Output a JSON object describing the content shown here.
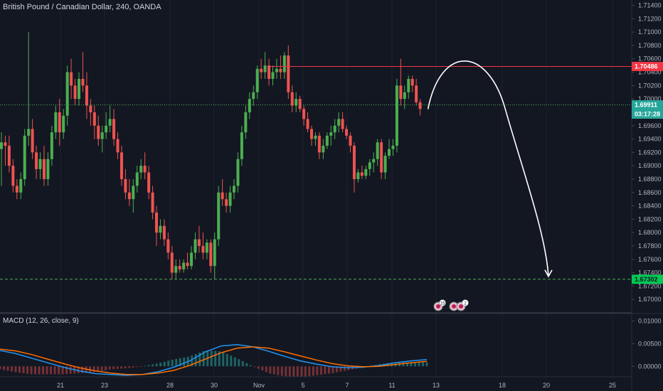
{
  "header": {
    "symbol": "British Pound / Canadian Dollar, 240, OANDA"
  },
  "macd": {
    "label": "MACD (12, 26, close, 9)"
  },
  "price_tags": {
    "resistance": "1.70486",
    "current": "1.69911",
    "countdown": "03:17:28",
    "target": "1.67302"
  },
  "events": {
    "badge_1": "15",
    "badge_2": "2"
  },
  "colors": {
    "background": "#131722",
    "up": "#26a69a",
    "bull_candle": "#4caf50",
    "bear_candle": "#ef5350",
    "resistance": "#f23645",
    "current_line": "#4caf50",
    "target_line": "#4caf50",
    "macd_line": "#2196f3",
    "signal_line": "#ff6d00",
    "projection": "#ffffff"
  },
  "chart_data": [
    {
      "type": "candlestick",
      "title": "British Pound / Canadian Dollar, 240, OANDA",
      "ylim": [
        1.668,
        1.7148
      ],
      "y_ticks": [
        "1.71400",
        "1.71200",
        "1.71000",
        "1.70800",
        "1.70600",
        "1.70400",
        "1.70200",
        "1.70000",
        "1.69800",
        "1.69600",
        "1.69400",
        "1.69200",
        "1.69000",
        "1.68800",
        "1.68600",
        "1.68400",
        "1.68200",
        "1.68000",
        "1.67800",
        "1.67600",
        "1.67400",
        "1.67200",
        "1.67000"
      ],
      "x_ticks": [
        "21",
        "23",
        "28",
        "30",
        "Nov",
        "5",
        "7",
        "11",
        "13",
        "18",
        "20",
        "25"
      ],
      "horizontal_lines": [
        {
          "name": "resistance",
          "value": 1.70486
        },
        {
          "name": "current",
          "value": 1.69911
        },
        {
          "name": "target",
          "value": 1.67302
        }
      ],
      "candles": [
        [
          1.6925,
          1.695,
          1.687,
          1.6935
        ],
        [
          1.6935,
          1.6945,
          1.69,
          1.693
        ],
        [
          1.693,
          1.6945,
          1.689,
          1.69
        ],
        [
          1.69,
          1.691,
          1.686,
          1.687
        ],
        [
          1.687,
          1.688,
          1.685,
          1.686
        ],
        [
          1.686,
          1.689,
          1.685,
          1.688
        ],
        [
          1.688,
          1.6955,
          1.687,
          1.6945
        ],
        [
          1.6945,
          1.71,
          1.693,
          1.6955
        ],
        [
          1.6955,
          1.697,
          1.691,
          1.692
        ],
        [
          1.692,
          1.693,
          1.688,
          1.6895
        ],
        [
          1.6895,
          1.692,
          1.688,
          1.691
        ],
        [
          1.691,
          1.693,
          1.687,
          1.688
        ],
        [
          1.688,
          1.692,
          1.687,
          1.691
        ],
        [
          1.691,
          1.696,
          1.69,
          1.695
        ],
        [
          1.695,
          1.699,
          1.694,
          1.698
        ],
        [
          1.698,
          1.7,
          1.693,
          1.695
        ],
        [
          1.695,
          1.6985,
          1.694,
          1.6975
        ],
        [
          1.6975,
          1.705,
          1.696,
          1.704
        ],
        [
          1.704,
          1.706,
          1.7,
          1.702
        ],
        [
          1.702,
          1.703,
          1.699,
          1.7
        ],
        [
          1.7,
          1.704,
          1.699,
          1.703
        ],
        [
          1.703,
          1.707,
          1.701,
          1.702
        ],
        [
          1.702,
          1.704,
          1.697,
          1.699
        ],
        [
          1.699,
          1.7,
          1.696,
          1.698
        ],
        [
          1.698,
          1.699,
          1.694,
          1.696
        ],
        [
          1.696,
          1.6975,
          1.693,
          1.694
        ],
        [
          1.694,
          1.696,
          1.692,
          1.695
        ],
        [
          1.695,
          1.698,
          1.694,
          1.696
        ],
        [
          1.696,
          1.699,
          1.695,
          1.697
        ],
        [
          1.697,
          1.6985,
          1.693,
          1.694
        ],
        [
          1.694,
          1.695,
          1.691,
          1.692
        ],
        [
          1.692,
          1.693,
          1.687,
          1.688
        ],
        [
          1.688,
          1.6895,
          1.685,
          1.686
        ],
        [
          1.686,
          1.688,
          1.684,
          1.685
        ],
        [
          1.685,
          1.688,
          1.683,
          1.687
        ],
        [
          1.687,
          1.69,
          1.686,
          1.689
        ],
        [
          1.689,
          1.691,
          1.688,
          1.69
        ],
        [
          1.69,
          1.692,
          1.688,
          1.689
        ],
        [
          1.689,
          1.69,
          1.685,
          1.686
        ],
        [
          1.686,
          1.687,
          1.682,
          1.683
        ],
        [
          1.683,
          1.684,
          1.678,
          1.68
        ],
        [
          1.68,
          1.682,
          1.679,
          1.681
        ],
        [
          1.681,
          1.682,
          1.678,
          1.679
        ],
        [
          1.679,
          1.68,
          1.676,
          1.677
        ],
        [
          1.677,
          1.678,
          1.673,
          1.674
        ],
        [
          1.674,
          1.676,
          1.673,
          1.675
        ],
        [
          1.675,
          1.676,
          1.674,
          1.6745
        ],
        [
          1.6745,
          1.676,
          1.674,
          1.6755
        ],
        [
          1.6755,
          1.677,
          1.6745,
          1.675
        ],
        [
          1.675,
          1.678,
          1.6745,
          1.677
        ],
        [
          1.677,
          1.68,
          1.676,
          1.679
        ],
        [
          1.679,
          1.681,
          1.677,
          1.678
        ],
        [
          1.678,
          1.68,
          1.676,
          1.677
        ],
        [
          1.677,
          1.679,
          1.676,
          1.6785
        ],
        [
          1.6785,
          1.679,
          1.674,
          1.675
        ],
        [
          1.675,
          1.68,
          1.673,
          1.679
        ],
        [
          1.679,
          1.687,
          1.678,
          1.686
        ],
        [
          1.686,
          1.688,
          1.684,
          1.685
        ],
        [
          1.685,
          1.686,
          1.683,
          1.684
        ],
        [
          1.684,
          1.687,
          1.683,
          1.686
        ],
        [
          1.686,
          1.688,
          1.685,
          1.687
        ],
        [
          1.687,
          1.692,
          1.686,
          1.691
        ],
        [
          1.691,
          1.696,
          1.69,
          1.695
        ],
        [
          1.695,
          1.699,
          1.694,
          1.698
        ],
        [
          1.698,
          1.701,
          1.697,
          1.7
        ],
        [
          1.7,
          1.702,
          1.699,
          1.701
        ],
        [
          1.701,
          1.705,
          1.7,
          1.7045
        ],
        [
          1.7045,
          1.706,
          1.703,
          1.704
        ],
        [
          1.704,
          1.707,
          1.703,
          1.705
        ],
        [
          1.705,
          1.706,
          1.702,
          1.703
        ],
        [
          1.703,
          1.705,
          1.702,
          1.704
        ],
        [
          1.704,
          1.706,
          1.703,
          1.7045
        ],
        [
          1.7045,
          1.7065,
          1.703,
          1.704
        ],
        [
          1.704,
          1.707,
          1.703,
          1.7065
        ],
        [
          1.7065,
          1.708,
          1.7,
          1.701
        ],
        [
          1.701,
          1.702,
          1.698,
          1.699
        ],
        [
          1.699,
          1.701,
          1.698,
          1.7
        ],
        [
          1.7,
          1.7005,
          1.698,
          1.6985
        ],
        [
          1.6985,
          1.699,
          1.696,
          1.697
        ],
        [
          1.697,
          1.698,
          1.695,
          1.6955
        ],
        [
          1.6955,
          1.696,
          1.693,
          1.694
        ],
        [
          1.694,
          1.695,
          1.693,
          1.6945
        ],
        [
          1.6945,
          1.695,
          1.691,
          1.692
        ],
        [
          1.692,
          1.694,
          1.691,
          1.693
        ],
        [
          1.693,
          1.695,
          1.6925,
          1.6945
        ],
        [
          1.6945,
          1.696,
          1.693,
          1.695
        ],
        [
          1.695,
          1.697,
          1.694,
          1.696
        ],
        [
          1.696,
          1.698,
          1.695,
          1.697
        ],
        [
          1.697,
          1.698,
          1.695,
          1.6955
        ],
        [
          1.6955,
          1.696,
          1.694,
          1.6945
        ],
        [
          1.6945,
          1.695,
          1.692,
          1.693
        ],
        [
          1.693,
          1.6935,
          1.686,
          1.688
        ],
        [
          1.688,
          1.6895,
          1.6875,
          1.689
        ],
        [
          1.689,
          1.69,
          1.688,
          1.6885
        ],
        [
          1.6885,
          1.69,
          1.688,
          1.6895
        ],
        [
          1.6895,
          1.691,
          1.6885,
          1.6905
        ],
        [
          1.6905,
          1.692,
          1.689,
          1.691
        ],
        [
          1.691,
          1.694,
          1.69,
          1.6935
        ],
        [
          1.6935,
          1.694,
          1.688,
          1.689
        ],
        [
          1.689,
          1.692,
          1.688,
          1.6915
        ],
        [
          1.6915,
          1.694,
          1.691,
          1.6925
        ],
        [
          1.6925,
          1.694,
          1.6915,
          1.693
        ],
        [
          1.693,
          1.703,
          1.692,
          1.702
        ],
        [
          1.702,
          1.706,
          1.699,
          1.7
        ],
        [
          1.7,
          1.702,
          1.6985,
          1.701
        ],
        [
          1.701,
          1.7035,
          1.7,
          1.703
        ],
        [
          1.703,
          1.7035,
          1.701,
          1.702
        ],
        [
          1.702,
          1.703,
          1.699,
          1.6995
        ],
        [
          1.6995,
          1.7,
          1.6975,
          1.6985
        ]
      ]
    },
    {
      "type": "line",
      "title": "MACD (12, 26, close, 9)",
      "ylim": [
        -0.002,
        0.0115
      ],
      "y_ticks": [
        "0.01000",
        "0.00500",
        "0.00000"
      ],
      "series": [
        {
          "name": "MACD",
          "values": [
            0.0035,
            0.0028,
            0.0018,
            0.0008,
            -0.0002,
            -0.001,
            -0.0016,
            -0.0018,
            -0.002,
            -0.0018,
            -0.0012,
            -0.0002,
            0.0012,
            0.0032,
            0.0045,
            0.0048,
            0.0043,
            0.0033,
            0.0022,
            0.0012,
            0.0005,
            -0.0001,
            -0.0003,
            -0.0002,
            0.0002,
            0.0008,
            0.0012,
            0.0015
          ]
        },
        {
          "name": "Signal",
          "values": [
            0.0038,
            0.0034,
            0.0026,
            0.0016,
            0.0006,
            -0.0003,
            -0.001,
            -0.0015,
            -0.0018,
            -0.0018,
            -0.0015,
            -0.0009,
            0.0002,
            0.0016,
            0.003,
            0.004,
            0.0043,
            0.004,
            0.0032,
            0.0023,
            0.0014,
            0.0006,
            0.0001,
            -0.0001,
            0.0,
            0.0004,
            0.0008,
            0.0011
          ]
        }
      ]
    }
  ]
}
